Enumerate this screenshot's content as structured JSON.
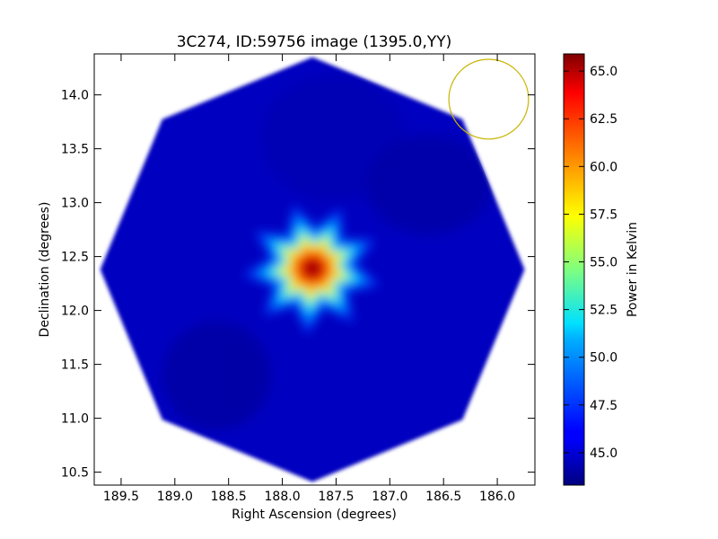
{
  "chart_data": {
    "type": "heatmap",
    "title": "3C274, ID:59756 image (1395.0,YY)",
    "xlabel": "Right Ascension (degrees)",
    "ylabel": "Declination (degrees)",
    "colorbar_label": "Power in Kelvin",
    "xlim": [
      189.75,
      185.65
    ],
    "ylim": [
      10.38,
      14.38
    ],
    "x_ticks": [
      189.5,
      189.0,
      188.5,
      188.0,
      187.5,
      187.0,
      186.5,
      186.0
    ],
    "x_tick_labels": [
      "189.5",
      "189.0",
      "188.5",
      "188.0",
      "187.5",
      "187.0",
      "186.5",
      "186.0"
    ],
    "y_ticks": [
      10.5,
      11.0,
      11.5,
      12.0,
      12.5,
      13.0,
      13.5,
      14.0
    ],
    "y_tick_labels": [
      "10.5",
      "11.0",
      "11.5",
      "12.0",
      "12.5",
      "13.0",
      "13.5",
      "14.0"
    ],
    "colorbar_range": [
      43.3,
      65.9
    ],
    "colorbar_ticks": [
      45.0,
      47.5,
      50.0,
      52.5,
      55.0,
      57.5,
      60.0,
      62.5,
      65.0
    ],
    "colorbar_tick_labels": [
      "45.0",
      "47.5",
      "50.0",
      "52.5",
      "55.0",
      "57.5",
      "60.0",
      "62.5",
      "65.0"
    ],
    "colormap": "jet",
    "source": {
      "ra": 187.72,
      "dec": 12.39,
      "peak_kelvin": 65.9
    },
    "background_kelvin": 44.0,
    "beam_circle": {
      "ra": 186.08,
      "dec": 13.96,
      "radius_deg": 0.37,
      "color": "#c8b400"
    },
    "footprint": {
      "shape": "octagon",
      "center_ra": 187.72,
      "center_dec": 12.38,
      "extent_dec": 1.97
    }
  }
}
